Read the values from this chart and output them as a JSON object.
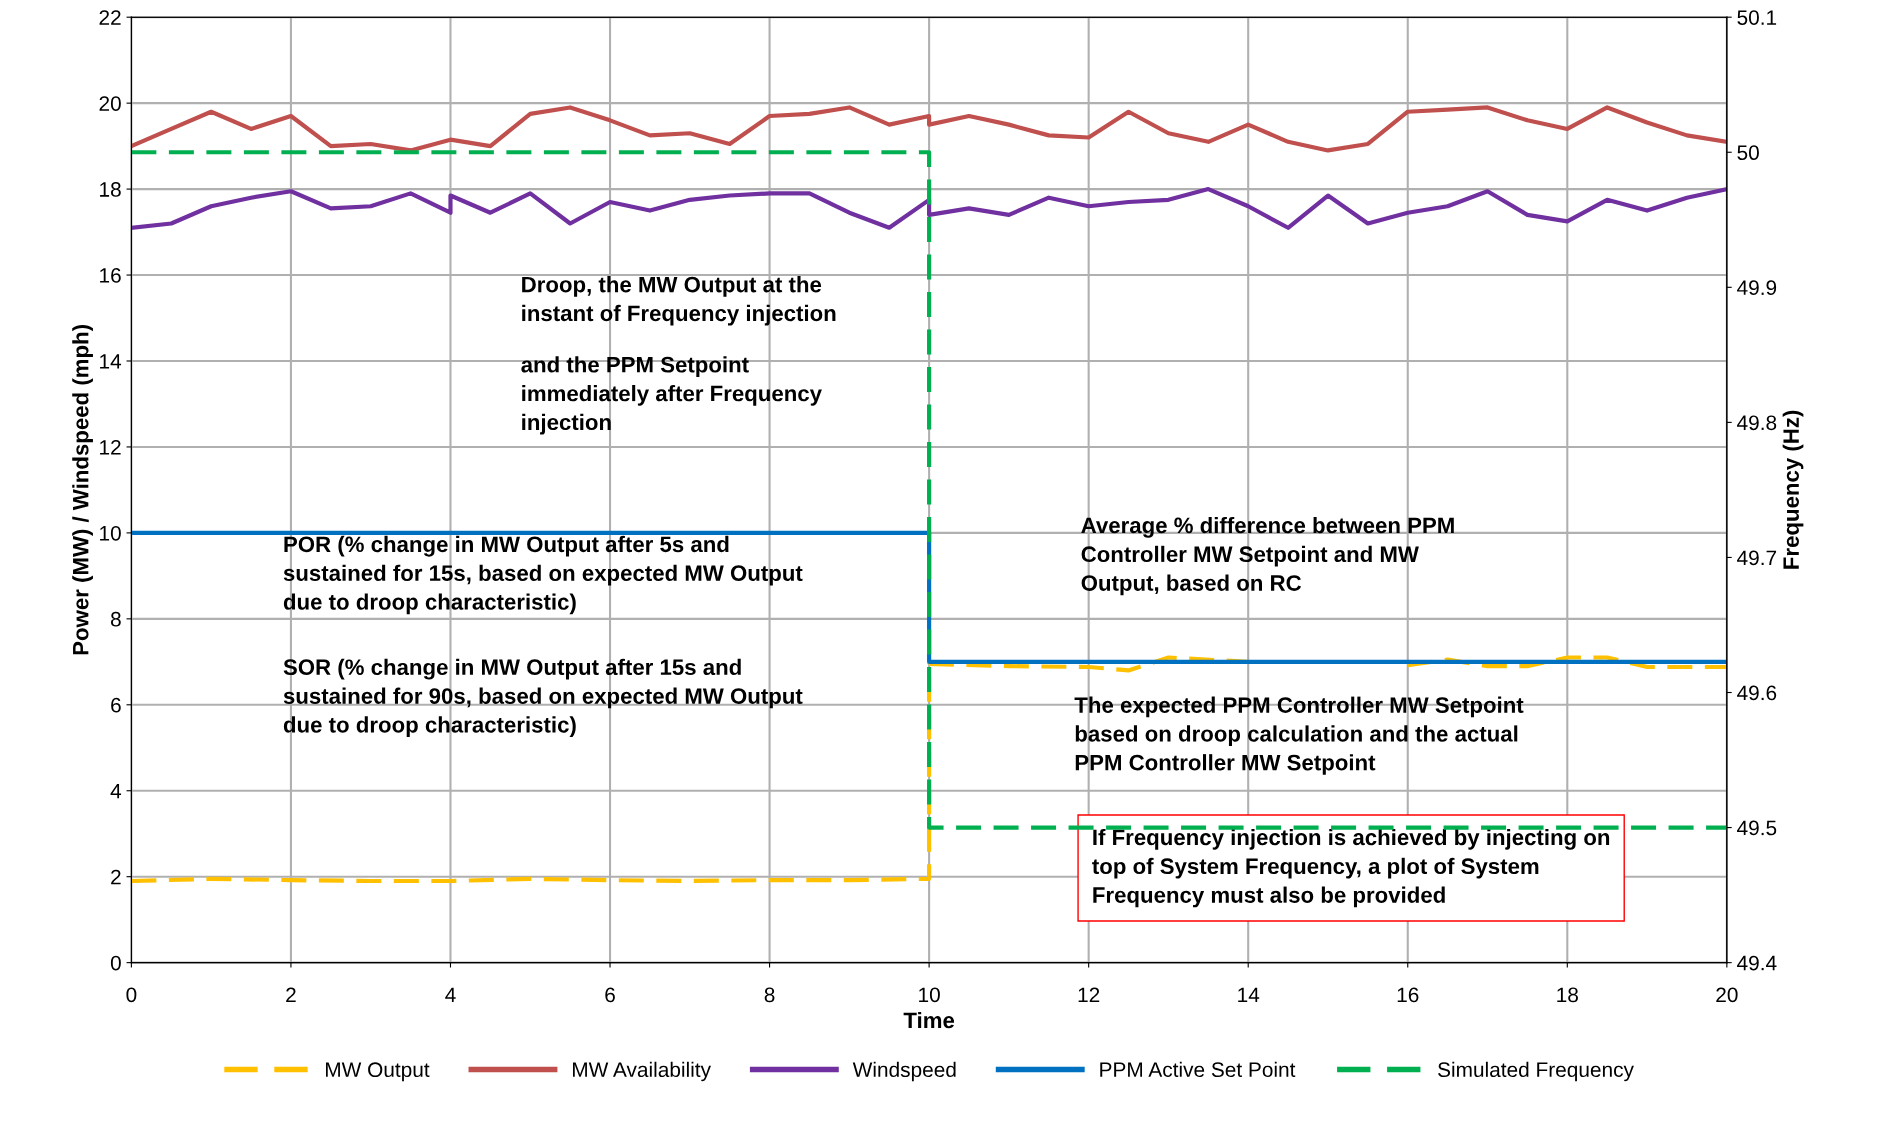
{
  "chart_data": {
    "type": "line",
    "xlabel": "Time",
    "ylabel": "Power (MW) / Windspeed (mph)",
    "y2label": "Frequency (Hz)",
    "xlim": [
      0,
      20
    ],
    "xticks": [
      0,
      2,
      4,
      6,
      8,
      10,
      12,
      14,
      16,
      18,
      20
    ],
    "ylim": [
      0,
      22
    ],
    "yticks": [
      0,
      2,
      4,
      6,
      8,
      10,
      12,
      14,
      16,
      18,
      20,
      22
    ],
    "y2lim": [
      49.4,
      50.1
    ],
    "y2ticks": [
      49.4,
      49.5,
      49.6,
      49.7,
      49.8,
      49.9,
      50,
      50.1
    ],
    "grid": true,
    "legend": "bottom",
    "marker": "none",
    "series": [
      {
        "name": "MW Output",
        "color": "#ffc000",
        "line_style": "dashed",
        "x": [
          0,
          1,
          2,
          3,
          4,
          5,
          6,
          7,
          8,
          9,
          10,
          10,
          11,
          12,
          12.5,
          13,
          14,
          15,
          16,
          16.5,
          17,
          17.5,
          18,
          18.5,
          19,
          20
        ],
        "values": [
          1.9,
          1.95,
          1.92,
          1.9,
          1.9,
          1.95,
          1.92,
          1.9,
          1.92,
          1.92,
          1.95,
          6.95,
          6.9,
          6.88,
          6.8,
          7.1,
          7.0,
          null,
          6.92,
          7.05,
          6.9,
          6.9,
          7.1,
          7.1,
          6.88,
          6.88
        ]
      },
      {
        "name": "MW Availability",
        "color": "#c0504d",
        "line_style": "solid",
        "x": [
          0,
          0.5,
          1,
          1.5,
          2,
          2.5,
          3,
          3.5,
          4,
          4.5,
          5,
          5.5,
          6,
          6.5,
          7,
          7.5,
          8,
          8.5,
          9,
          9.5,
          10,
          10,
          10.5,
          11,
          11.5,
          12,
          12.5,
          13,
          13.5,
          14,
          14.5,
          15,
          15.5,
          16,
          16.5,
          17,
          17.5,
          18,
          18.5,
          19,
          19.5,
          20
        ],
        "values": [
          19.0,
          19.4,
          19.8,
          19.4,
          19.7,
          19.0,
          19.05,
          18.9,
          19.15,
          19.0,
          19.75,
          19.9,
          19.6,
          19.25,
          19.3,
          19.05,
          19.7,
          19.75,
          19.9,
          19.5,
          19.7,
          19.5,
          19.7,
          19.5,
          19.25,
          19.2,
          19.8,
          19.3,
          19.1,
          19.5,
          19.1,
          18.9,
          19.05,
          19.8,
          19.85,
          19.9,
          19.6,
          19.4,
          19.9,
          19.55,
          19.25,
          19.1
        ]
      },
      {
        "name": "Windspeed",
        "color": "#7030a0",
        "line_style": "solid",
        "x": [
          0,
          0.5,
          1,
          1.5,
          2,
          2.5,
          3,
          3.5,
          4,
          4,
          4.5,
          5,
          5.5,
          6,
          6.5,
          7,
          7.5,
          8,
          8.5,
          9,
          9.5,
          10,
          10,
          10.5,
          11,
          11.5,
          12,
          12.5,
          13,
          13.5,
          14,
          14.5,
          15,
          15.5,
          16,
          16.5,
          17,
          17.5,
          18,
          18.5,
          19,
          19.5,
          20
        ],
        "values": [
          17.1,
          17.2,
          17.6,
          17.8,
          17.95,
          17.55,
          17.6,
          17.9,
          17.45,
          17.85,
          17.45,
          17.9,
          17.2,
          17.7,
          17.5,
          17.75,
          17.85,
          17.9,
          17.9,
          17.45,
          17.1,
          17.75,
          17.4,
          17.55,
          17.4,
          17.8,
          17.6,
          17.7,
          17.75,
          18.0,
          17.6,
          17.1,
          17.85,
          17.2,
          17.45,
          17.6,
          17.95,
          17.4,
          17.25,
          17.75,
          17.5,
          17.8,
          18.0
        ]
      },
      {
        "name": "PPM Active Set Point",
        "color": "#0070c0",
        "line_style": "solid",
        "x": [
          0,
          10,
          10,
          20
        ],
        "values": [
          10.0,
          10.0,
          7.0,
          7.0
        ]
      },
      {
        "name": "Simulated Frequency",
        "color": "#00b050",
        "line_style": "dashed",
        "axis": "y2",
        "x": [
          0,
          10,
          10,
          20
        ],
        "values": [
          50.0,
          50.0,
          49.5,
          49.5
        ]
      }
    ],
    "annotations": [
      "Droop, the MW Output at the\ninstant of Frequency injection",
      "and the PPM Setpoint\nimmediately after Frequency\ninjection",
      "POR (% change in MW Output after 5s and\nsustained for 15s, based on expected MW Output\ndue to droop characteristic)",
      "SOR (% change in MW Output after 15s and\nsustained for 90s, based on expected MW Output\ndue to droop characteristic)",
      "Average % difference between PPM\nController MW Setpoint and MW\nOutput, based on RC",
      "The expected PPM Controller MW Setpoint\nbased on droop calculation and the actual\nPPM Controller MW Setpoint",
      "If Frequency injection is achieved by injecting on\ntop of System Frequency, a plot of System\nFrequency must also be provided"
    ]
  }
}
